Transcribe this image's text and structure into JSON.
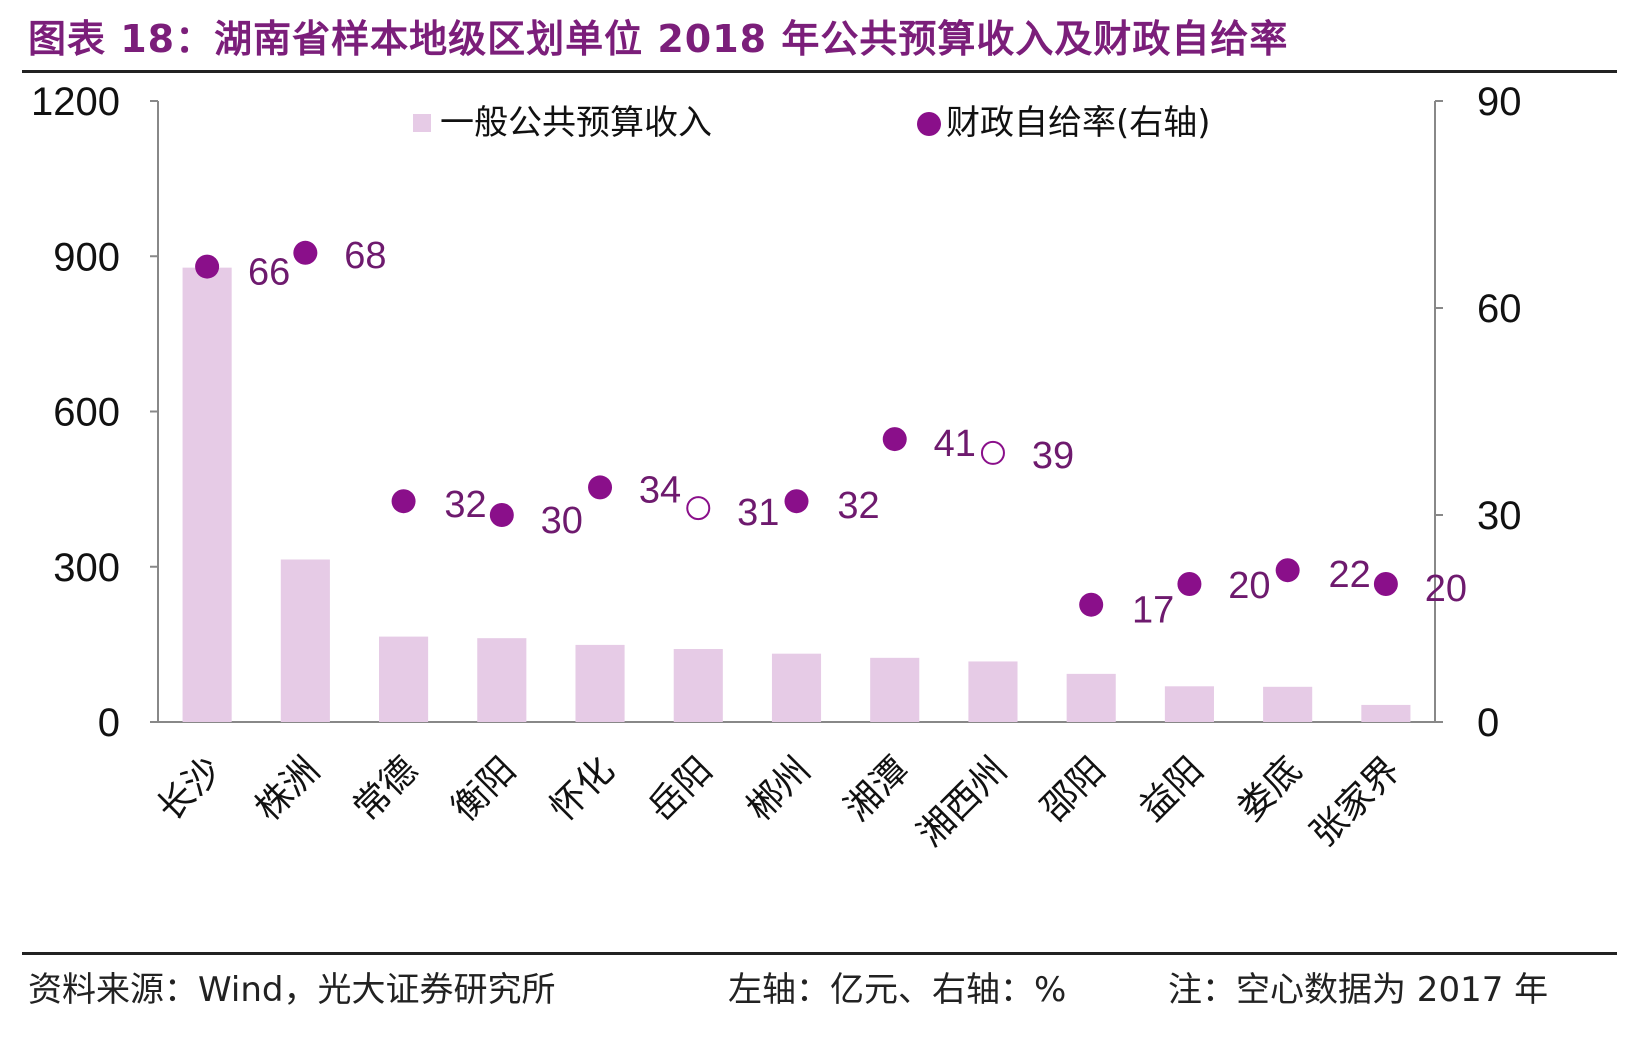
{
  "title": "图表 18：湖南省样本地级区划单位 2018 年公共预算收入及财政自给率",
  "footer": {
    "source": "资料来源：Wind，光大证券研究所",
    "units": "左轴：亿元、右轴：%",
    "note": "注：空心数据为 2017 年"
  },
  "colors": {
    "bar": "#e6cbe6",
    "dot": "#8a0f8a",
    "title": "#7b1e7a"
  },
  "chart_data": {
    "type": "bar",
    "categories": [
      "长沙",
      "株洲",
      "常德",
      "衡阳",
      "怀化",
      "岳阳",
      "郴州",
      "湘潭",
      "湘西州",
      "邵阳",
      "益阳",
      "娄底",
      "张家界"
    ],
    "series": [
      {
        "name": "一般公共预算收入",
        "axis": "left",
        "type": "bar",
        "values": [
          878,
          314,
          165,
          162,
          149,
          141,
          132,
          124,
          117,
          93,
          69,
          68,
          33
        ]
      },
      {
        "name": "财政自给率(右轴)",
        "axis": "right",
        "type": "scatter",
        "values": [
          66,
          68,
          32,
          30,
          34,
          31,
          32,
          41,
          39,
          17,
          20,
          22,
          20
        ],
        "hollow": [
          false,
          false,
          false,
          false,
          false,
          true,
          false,
          false,
          true,
          false,
          false,
          false,
          false
        ]
      }
    ],
    "ylim_left": [
      0,
      1200
    ],
    "yticks_left": [
      0,
      300,
      600,
      900,
      1200
    ],
    "ylim_right": [
      0,
      90
    ],
    "yticks_right": [
      0,
      30,
      60,
      90
    ],
    "legend_position": "top"
  }
}
